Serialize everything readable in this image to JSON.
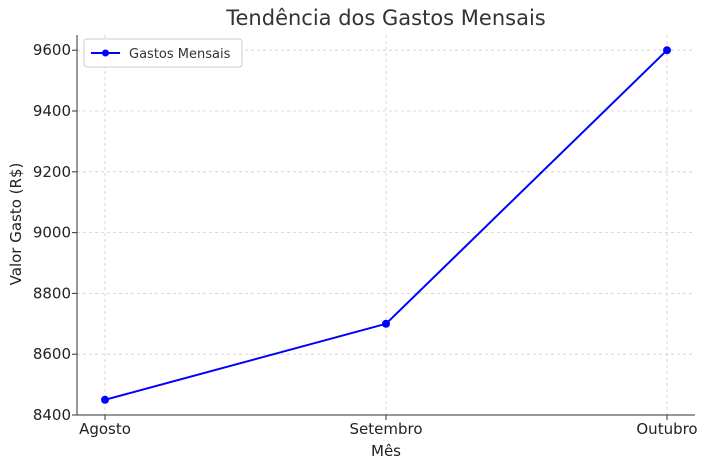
{
  "chart_data": {
    "type": "line",
    "title": "Tendência dos Gastos Mensais",
    "xlabel": "Mês",
    "ylabel": "Valor Gasto (R$)",
    "categories": [
      "Agosto",
      "Setembro",
      "Outubro"
    ],
    "series": [
      {
        "name": "Gastos Mensais",
        "values": [
          8450,
          8700,
          9600
        ],
        "color": "#0000ff",
        "marker": "circle"
      }
    ],
    "ylim": [
      8400,
      9650
    ],
    "yticks": [
      8400,
      8600,
      8800,
      9000,
      9200,
      9400,
      9600
    ],
    "ytick_labels": [
      "8400",
      "8600",
      "8800",
      "9000",
      "9200",
      "9400",
      "9600"
    ],
    "grid": true,
    "grid_style": "dashed",
    "legend_position": "top-left"
  }
}
